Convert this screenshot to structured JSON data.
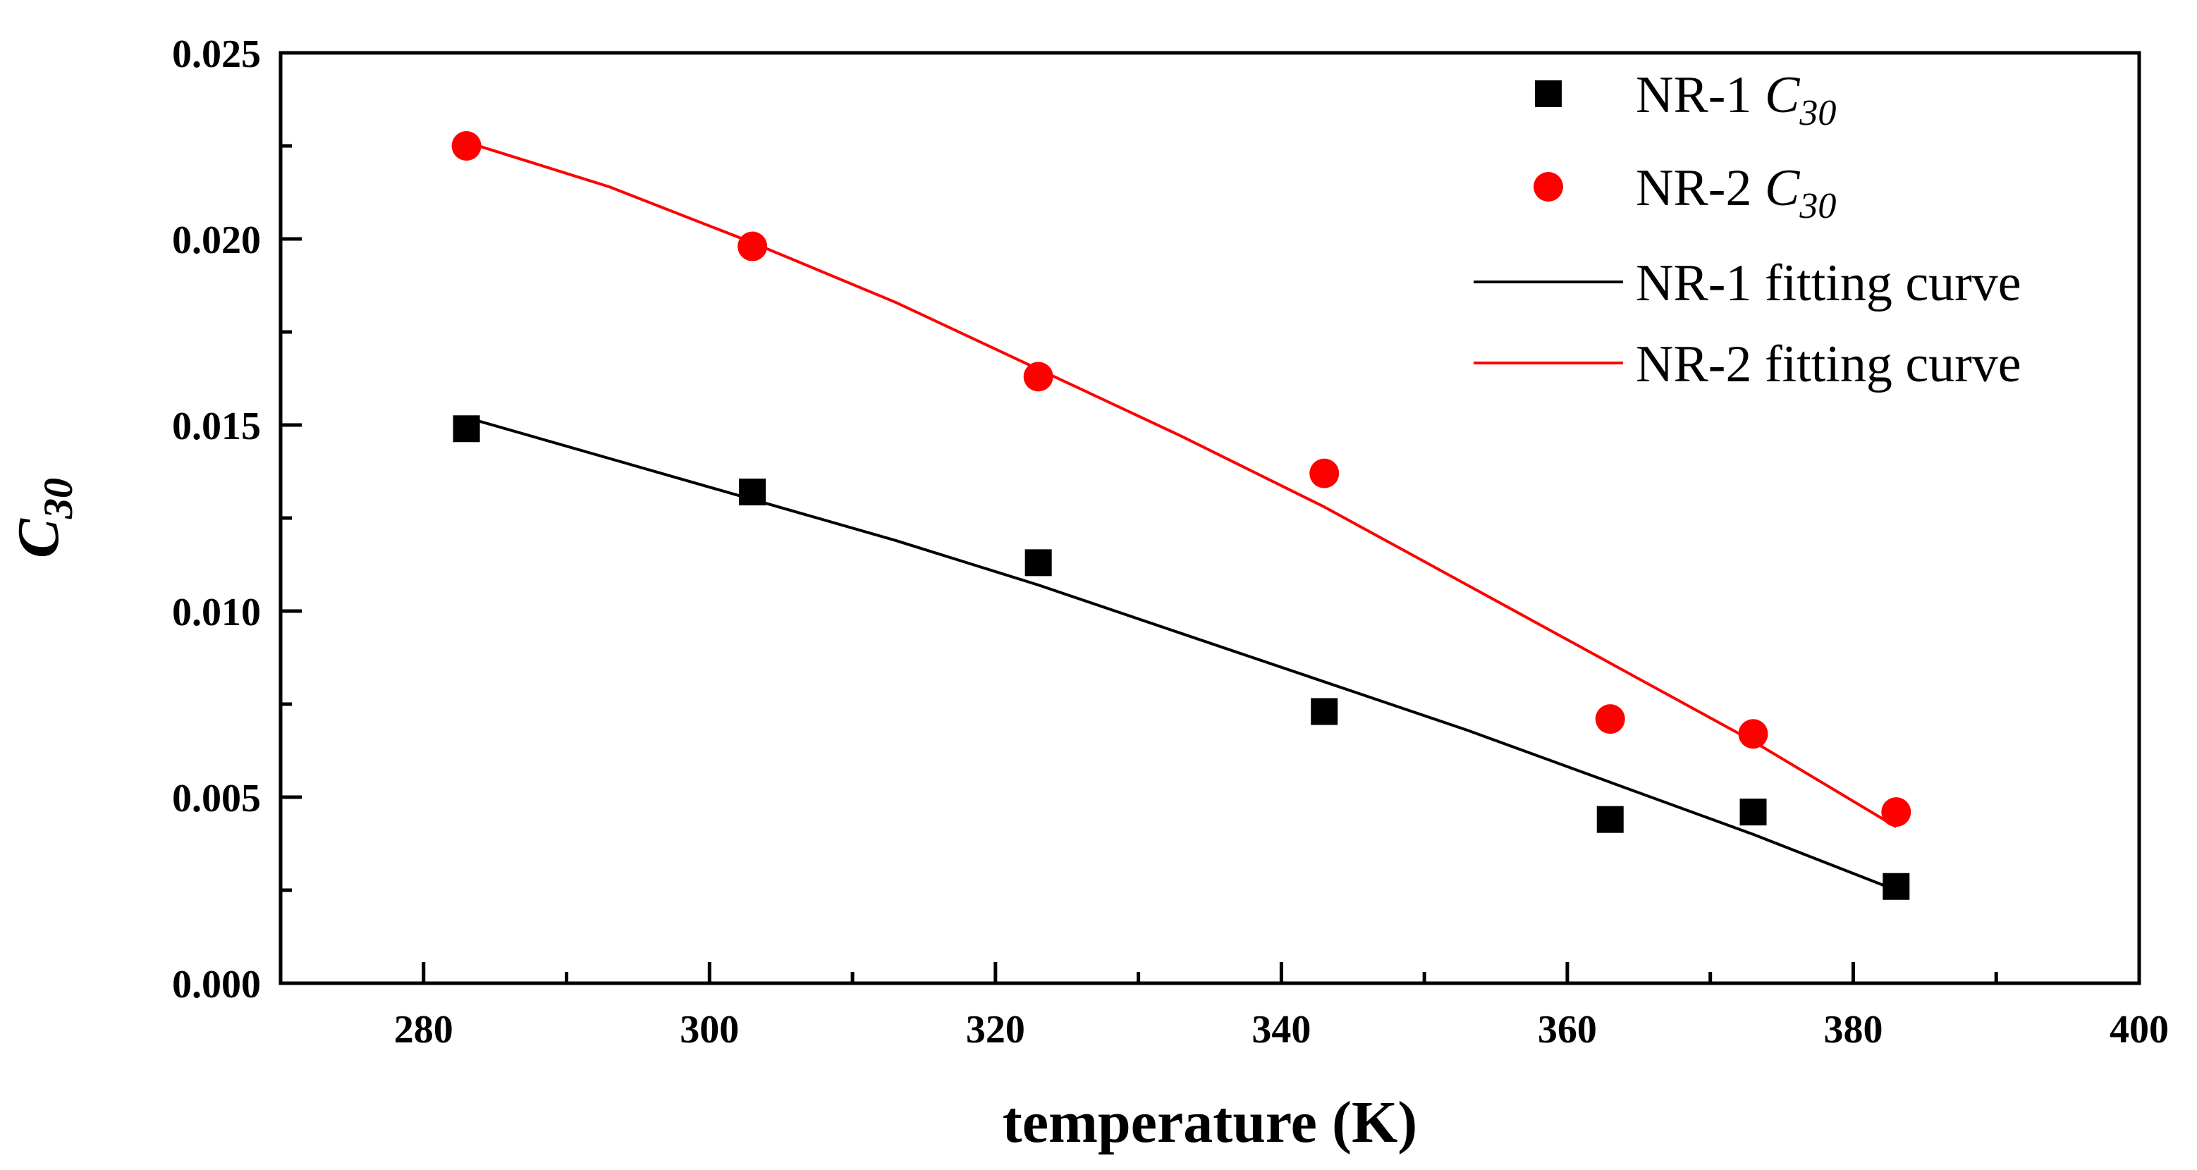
{
  "chart_data": {
    "type": "scatter",
    "xlabel": "temperature (K)",
    "ylabel": {
      "base": "C",
      "sub": "30"
    },
    "xlim": [
      270,
      400
    ],
    "ylim": [
      0.0,
      0.025
    ],
    "x_ticks": [
      {
        "value": 280,
        "label": "280"
      },
      {
        "value": 300,
        "label": "300"
      },
      {
        "value": 320,
        "label": "320"
      },
      {
        "value": 340,
        "label": "340"
      },
      {
        "value": 360,
        "label": "360"
      },
      {
        "value": 380,
        "label": "380"
      },
      {
        "value": 400,
        "label": "400"
      }
    ],
    "x_minor_ticks": [
      270,
      290,
      310,
      330,
      350,
      370,
      390
    ],
    "y_ticks": [
      {
        "value": 0.0,
        "label": "0.000"
      },
      {
        "value": 0.005,
        "label": "0.005"
      },
      {
        "value": 0.01,
        "label": "0.010"
      },
      {
        "value": 0.015,
        "label": "0.015"
      },
      {
        "value": 0.02,
        "label": "0.020"
      },
      {
        "value": 0.025,
        "label": "0.025"
      }
    ],
    "y_minor_ticks": [
      0.0025,
      0.0075,
      0.0125,
      0.0175,
      0.0225
    ],
    "grid": false,
    "legend_position": "top-right",
    "series": [
      {
        "name": "NR-1 C30",
        "legend_text": "NR-1",
        "legend_italic": "C",
        "legend_sub": "30",
        "kind": "points",
        "marker": "square",
        "color": "#000000",
        "x": [
          283,
          303,
          323,
          343,
          363,
          373,
          383
        ],
        "y": [
          0.0149,
          0.0132,
          0.0113,
          0.0073,
          0.0044,
          0.0046,
          0.0026
        ]
      },
      {
        "name": "NR-2 C30",
        "legend_text": "NR-2",
        "legend_italic": "C",
        "legend_sub": "30",
        "kind": "points",
        "marker": "circle",
        "color": "#ff0000",
        "x": [
          283,
          303,
          323,
          343,
          363,
          373,
          383
        ],
        "y": [
          0.0225,
          0.0198,
          0.0163,
          0.0137,
          0.0071,
          0.0067,
          0.0046
        ]
      },
      {
        "name": "NR-1 fitting curve",
        "legend_text": "NR-1 fitting curve",
        "kind": "line",
        "color": "#000000",
        "x": [
          283,
          293,
          303,
          313,
          323,
          333,
          343,
          353,
          363,
          373,
          383
        ],
        "y": [
          0.0152,
          0.0141,
          0.013,
          0.0119,
          0.0107,
          0.0094,
          0.0081,
          0.0068,
          0.0054,
          0.004,
          0.0025
        ]
      },
      {
        "name": "NR-2 fitting curve",
        "legend_text": "NR-2 fitting curve",
        "kind": "line",
        "color": "#ff0000",
        "x": [
          283,
          293,
          303,
          313,
          323,
          333,
          343,
          353,
          363,
          373,
          383
        ],
        "y": [
          0.0226,
          0.0214,
          0.0199,
          0.0183,
          0.0165,
          0.0147,
          0.0128,
          0.0107,
          0.0086,
          0.0065,
          0.0042
        ]
      }
    ]
  }
}
